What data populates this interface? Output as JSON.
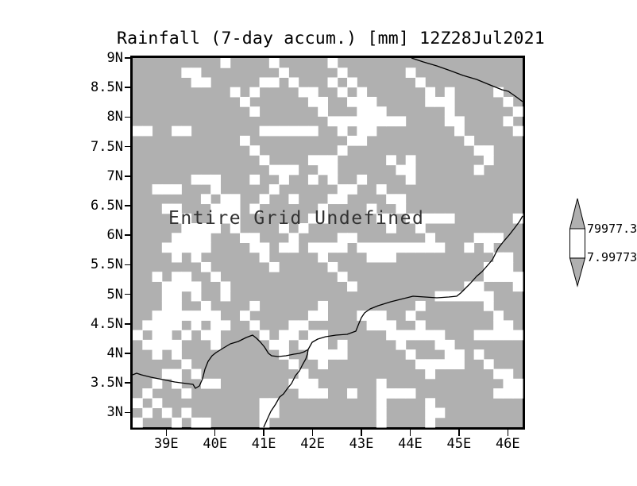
{
  "title": "Rainfall (7-day accum.) [mm] 12Z28Jul2021",
  "map": {
    "undefined_label": "Entire Grid Undefined",
    "colors": {
      "grid_gray": "#b0b0b0",
      "undefined_white": "#ffffff",
      "line_black": "#000000"
    },
    "speckle": {
      "seed": 20210728,
      "cols": 40,
      "rows": 38,
      "walk_count": 88,
      "walk_max_len": 7,
      "single_count": 26,
      "double_prob": 0.25,
      "turn_prob": 0.15
    },
    "coastlines": [
      [
        [
          351,
          0
        ],
        [
          366,
          5
        ],
        [
          383,
          10
        ],
        [
          400,
          16
        ],
        [
          416,
          22
        ],
        [
          433,
          27
        ],
        [
          450,
          34
        ],
        [
          465,
          40
        ],
        [
          473,
          42
        ],
        [
          483,
          49
        ],
        [
          491,
          55
        ]
      ],
      [
        [
          0,
          399
        ],
        [
          5,
          397
        ],
        [
          11,
          399
        ],
        [
          23,
          402
        ],
        [
          38,
          405
        ],
        [
          53,
          408
        ],
        [
          68,
          410
        ],
        [
          76,
          411
        ],
        [
          79,
          416
        ],
        [
          84,
          413
        ],
        [
          88,
          404
        ],
        [
          91,
          392
        ],
        [
          95,
          382
        ],
        [
          100,
          375
        ],
        [
          105,
          371
        ],
        [
          113,
          366
        ],
        [
          123,
          360
        ],
        [
          133,
          357
        ],
        [
          143,
          352
        ],
        [
          151,
          349
        ],
        [
          156,
          353
        ],
        [
          161,
          358
        ],
        [
          166,
          364
        ],
        [
          171,
          372
        ],
        [
          175,
          375
        ],
        [
          183,
          376
        ],
        [
          193,
          375
        ],
        [
          203,
          373
        ],
        [
          210,
          372
        ],
        [
          216,
          370
        ],
        [
          221,
          367
        ]
      ],
      [
        [
          165,
          465
        ],
        [
          169,
          456
        ],
        [
          174,
          445
        ],
        [
          180,
          436
        ],
        [
          185,
          427
        ],
        [
          190,
          423
        ],
        [
          195,
          416
        ],
        [
          200,
          410
        ],
        [
          205,
          400
        ],
        [
          210,
          394
        ],
        [
          214,
          386
        ],
        [
          218,
          379
        ],
        [
          220,
          373
        ],
        [
          221,
          367
        ]
      ],
      [
        [
          221,
          367
        ],
        [
          226,
          358
        ],
        [
          233,
          354
        ],
        [
          243,
          351
        ],
        [
          256,
          349
        ],
        [
          270,
          348
        ],
        [
          281,
          344
        ],
        [
          285,
          334
        ],
        [
          288,
          327
        ],
        [
          292,
          321
        ],
        [
          299,
          316
        ],
        [
          309,
          312
        ],
        [
          325,
          307
        ],
        [
          341,
          303
        ],
        [
          353,
          300
        ],
        [
          368,
          301
        ],
        [
          383,
          302
        ],
        [
          398,
          301
        ],
        [
          408,
          300
        ],
        [
          413,
          296
        ],
        [
          418,
          291
        ],
        [
          425,
          284
        ],
        [
          433,
          275
        ],
        [
          440,
          269
        ],
        [
          447,
          261
        ],
        [
          453,
          254
        ],
        [
          460,
          240
        ],
        [
          467,
          231
        ],
        [
          474,
          223
        ],
        [
          481,
          214
        ],
        [
          487,
          206
        ],
        [
          491,
          199
        ]
      ]
    ]
  },
  "axes": {
    "y_ticks": [
      "9N",
      "8.5N",
      "8N",
      "7.5N",
      "7N",
      "6.5N",
      "6N",
      "5.5N",
      "5N",
      "4.5N",
      "4N",
      "3.5N",
      "3N"
    ],
    "x_ticks": [
      "39E",
      "40E",
      "41E",
      "42E",
      "43E",
      "44E",
      "45E",
      "46E"
    ]
  },
  "colorbar": {
    "top_label": "79977.3",
    "bottom_label": "7.99773"
  },
  "chart_data": {
    "type": "heatmap",
    "title": "Rainfall (7-day accum.) [mm] 12Z28Jul2021",
    "annotation": "Entire Grid Undefined",
    "values": "undefined (entire grid undefined, no rainfall values plotted)",
    "x_axis": {
      "tick_labels": [
        "39E",
        "40E",
        "41E",
        "42E",
        "43E",
        "44E",
        "45E",
        "46E"
      ],
      "lon_range": [
        38.3,
        46.3
      ]
    },
    "y_axis": {
      "tick_labels": [
        "9N",
        "8.5N",
        "8N",
        "7.5N",
        "7N",
        "6.5N",
        "6N",
        "5.5N",
        "5N",
        "4.5N",
        "4N",
        "3.5N",
        "3N"
      ],
      "lat_range": [
        2.75,
        9.0
      ]
    },
    "colorbar_levels": [
      7.99773,
      79977.3
    ],
    "grid_on": false,
    "legend_position": "right-colorbar"
  }
}
